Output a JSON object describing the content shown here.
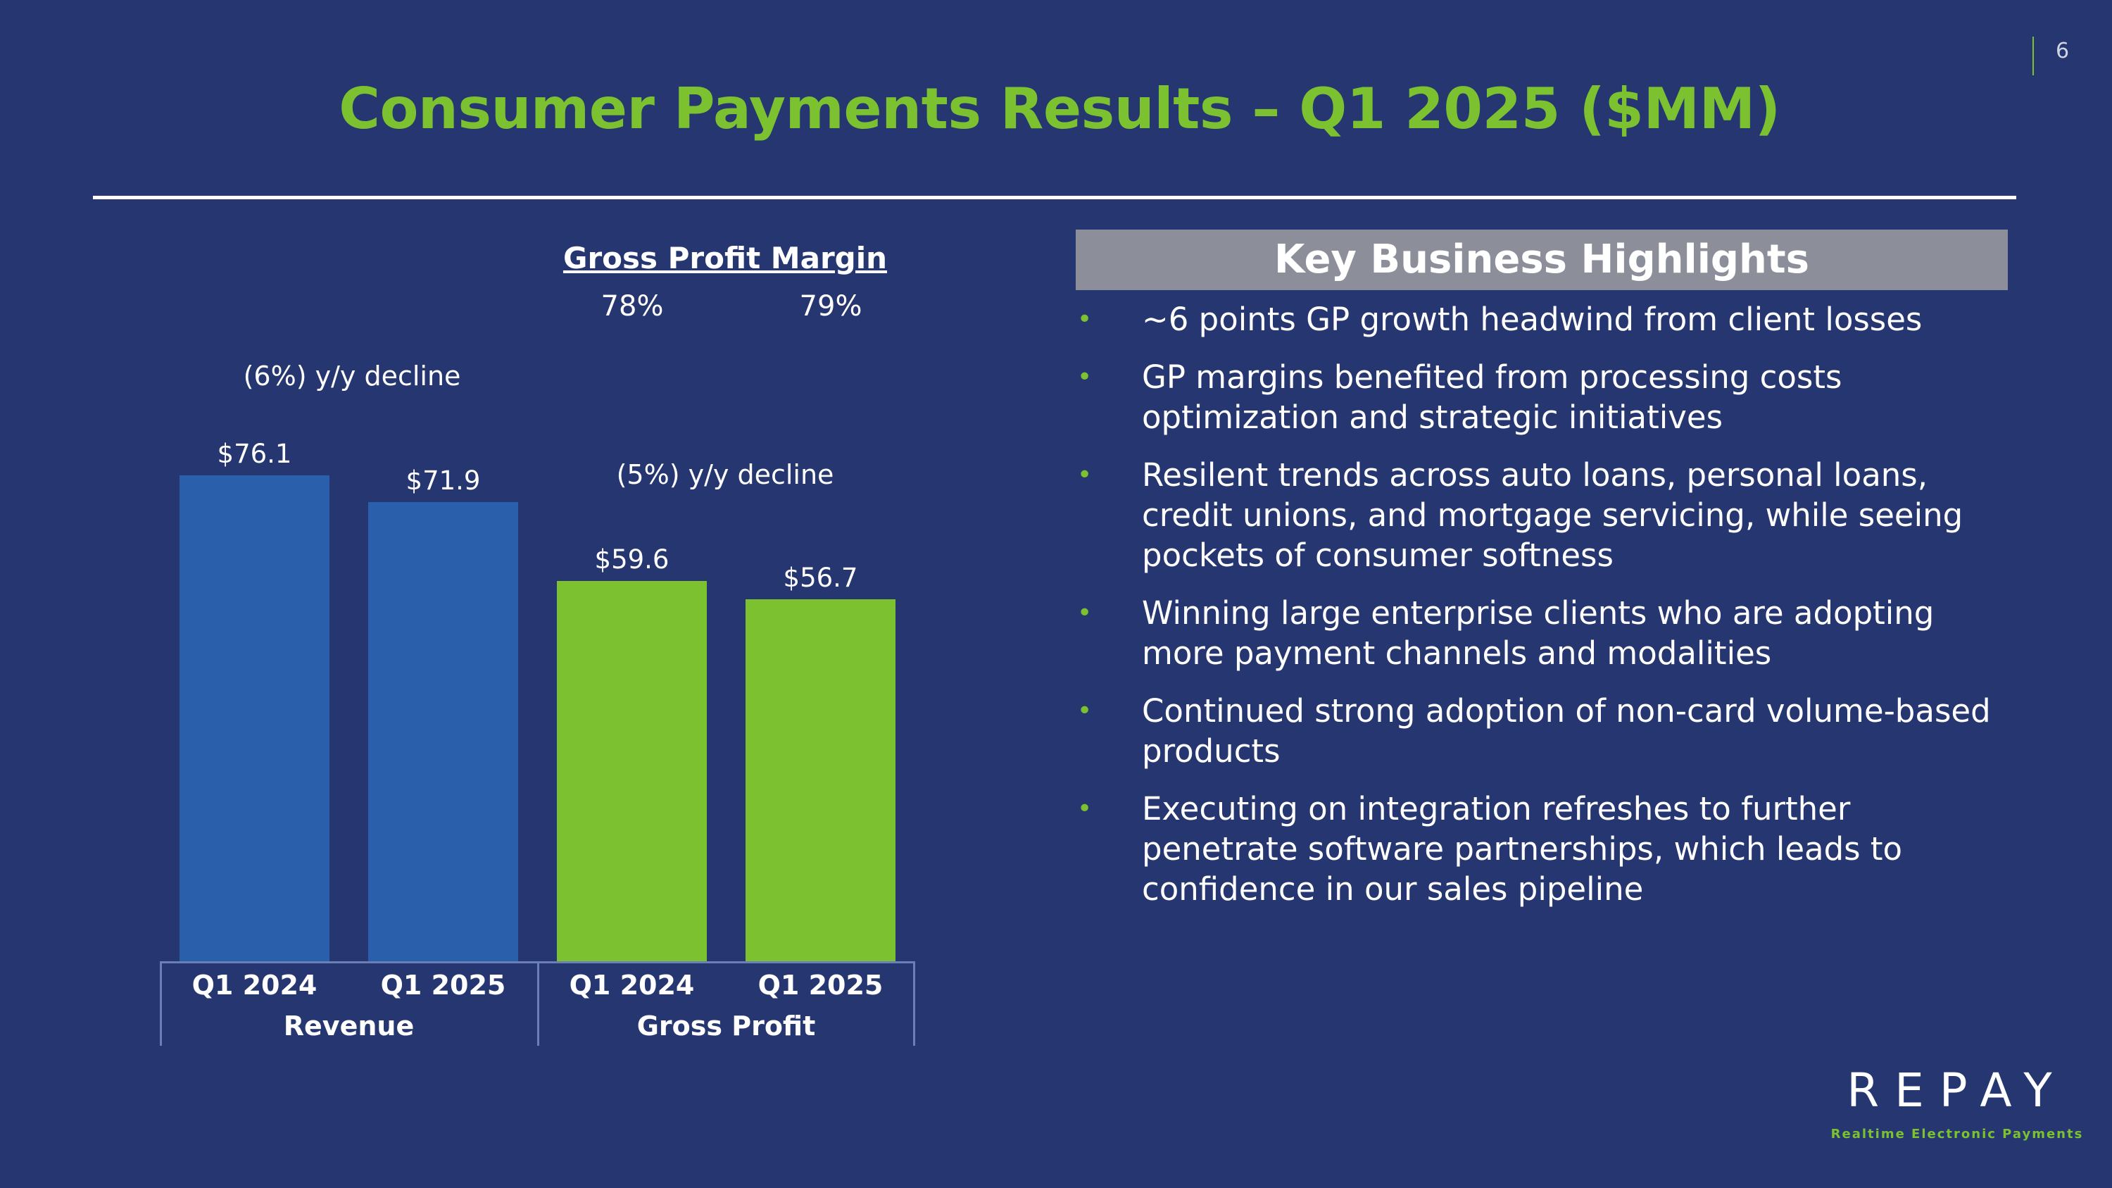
{
  "page_number": "6",
  "title": "Consumer Payments Results – Q1 2025 ($MM)",
  "gross_profit_margin": {
    "title": "Gross Profit Margin",
    "values": [
      "78%",
      "79%"
    ]
  },
  "annotations": {
    "revenue_decline": "(6%) y/y decline",
    "gross_profit_decline": "(5%) y/y decline"
  },
  "chart_data": {
    "type": "bar",
    "title": "",
    "groups": [
      {
        "name": "Revenue",
        "color": "#2a5fac",
        "categories": [
          "Q1 2024",
          "Q1 2025"
        ],
        "values": [
          76.1,
          71.9
        ],
        "labels": [
          "$76.1",
          "$71.9"
        ]
      },
      {
        "name": "Gross Profit",
        "color": "#7cc230",
        "categories": [
          "Q1 2024",
          "Q1 2025"
        ],
        "values": [
          59.6,
          56.7
        ],
        "labels": [
          "$59.6",
          "$56.7"
        ]
      }
    ],
    "ylim": [
      0,
      76.1
    ],
    "grid": false
  },
  "highlights": {
    "header": "Key Business Highlights",
    "items": [
      "~6 points GP growth headwind from client losses",
      "GP margins benefited from processing costs optimization and strategic initiatives",
      "Resilent trends across auto loans, personal loans, credit unions, and mortgage servicing, while seeing pockets of consumer softness",
      "Winning large enterprise clients who are adopting more payment channels and modalities",
      "Continued strong adoption of non-card volume-based products",
      "Executing on integration refreshes to further penetrate software partnerships, which leads to confidence in our sales pipeline"
    ]
  },
  "logo": {
    "name": "REPAY",
    "tagline": "Realtime Electronic Payments"
  },
  "colors": {
    "background": "#253670",
    "accent_green": "#7cc230",
    "bar_blue": "#2a5fac",
    "header_gray": "#8c8f99"
  }
}
